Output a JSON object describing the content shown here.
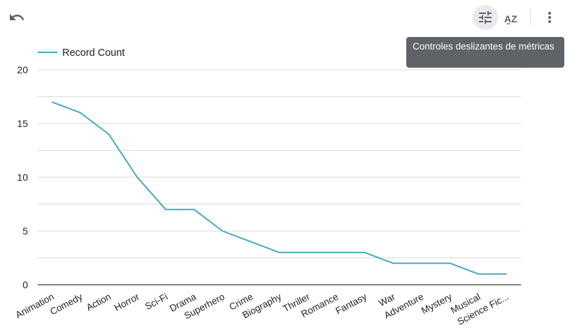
{
  "toolbar": {
    "undo_icon": "undo-icon",
    "metric_sliders_icon": "tune-icon",
    "sort_icon": "sort-az-icon",
    "more_icon": "more-vert-icon",
    "sort_label": "AZ"
  },
  "tooltip": {
    "text": "Controles deslizantes de métricas"
  },
  "colors": {
    "series": "#4aa8bd",
    "grid": "#d9d9d9",
    "axis": "#333333"
  },
  "chart_data": {
    "type": "line",
    "categories": [
      "Animation",
      "Comedy",
      "Action",
      "Horror",
      "Sci-Fi",
      "Drama",
      "Superhero",
      "Crime",
      "Biography",
      "Thriller",
      "Romance",
      "Fantasy",
      "War",
      "Adventure",
      "Mystery",
      "Musical",
      "Science Fic..."
    ],
    "series": [
      {
        "name": "Record Count",
        "values": [
          17,
          16,
          14,
          10,
          7,
          7,
          5,
          4,
          3,
          3,
          3,
          3,
          2,
          2,
          2,
          1,
          1
        ]
      }
    ],
    "ylim": [
      0,
      20
    ],
    "yticks": [
      0,
      5,
      10,
      15,
      20
    ],
    "grid": true,
    "legend": "top-left"
  }
}
